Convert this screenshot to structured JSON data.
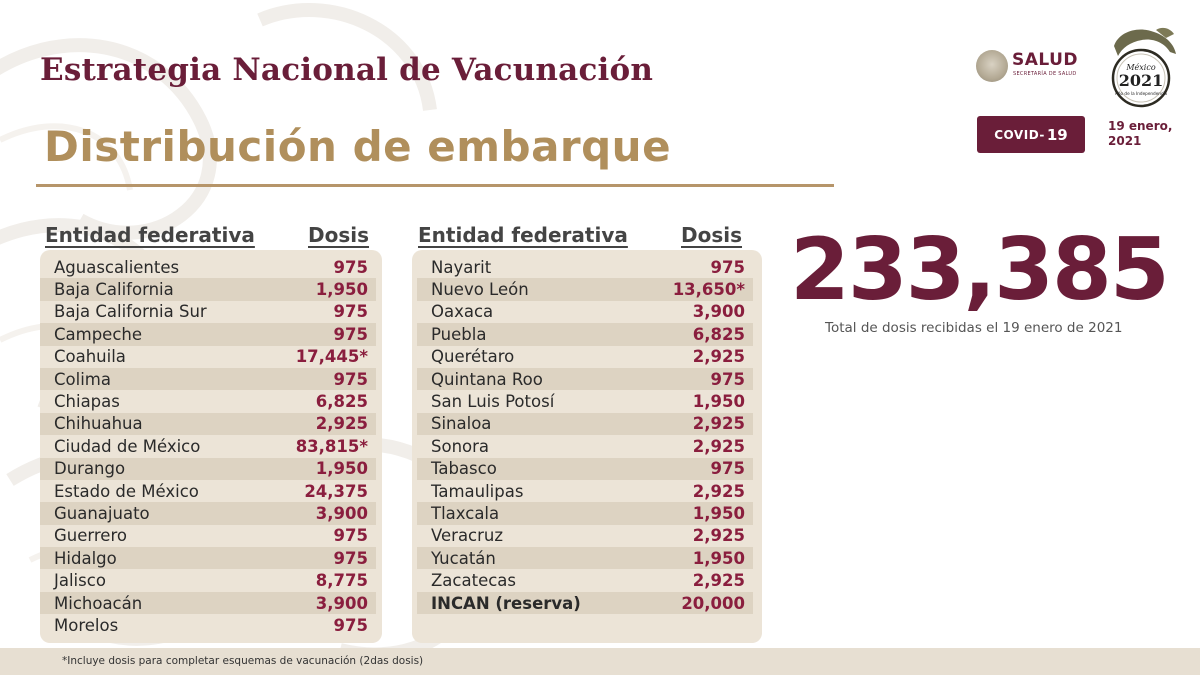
{
  "header": {
    "title": "Estrategia Nacional de Vacunación",
    "subtitle": "Distribución de embarque"
  },
  "logos": {
    "salud_text": "SALUD",
    "salud_sub": "SECRETARÍA DE SALUD",
    "seal_line1": "México",
    "seal_line2": "2021",
    "seal_line3": "Año de la Independencia"
  },
  "badge": {
    "covid_prefix": "COVID-",
    "covid_num": "19"
  },
  "date_label": {
    "line1": "19 enero,",
    "line2": "2021"
  },
  "table_left": {
    "col_entity": "Entidad federativa",
    "col_doses": "Dosis",
    "rows": [
      {
        "name": "Aguascalientes",
        "value": "975"
      },
      {
        "name": "Baja California",
        "value": "1,950"
      },
      {
        "name": "Baja California Sur",
        "value": "975"
      },
      {
        "name": "Campeche",
        "value": "975"
      },
      {
        "name": "Coahuila",
        "value": "17,445*"
      },
      {
        "name": "Colima",
        "value": "975"
      },
      {
        "name": "Chiapas",
        "value": "6,825"
      },
      {
        "name": "Chihuahua",
        "value": "2,925"
      },
      {
        "name": "Ciudad de México",
        "value": "83,815*"
      },
      {
        "name": "Durango",
        "value": "1,950"
      },
      {
        "name": "Estado de México",
        "value": "24,375"
      },
      {
        "name": "Guanajuato",
        "value": "3,900"
      },
      {
        "name": "Guerrero",
        "value": "975"
      },
      {
        "name": "Hidalgo",
        "value": "975"
      },
      {
        "name": "Jalisco",
        "value": "8,775"
      },
      {
        "name": "Michoacán",
        "value": "3,900"
      },
      {
        "name": "Morelos",
        "value": "975"
      }
    ]
  },
  "table_right": {
    "col_entity": "Entidad federativa",
    "col_doses": "Dosis",
    "rows": [
      {
        "name": "Nayarit",
        "value": "975"
      },
      {
        "name": "Nuevo León",
        "value": "13,650*"
      },
      {
        "name": "Oaxaca",
        "value": "3,900"
      },
      {
        "name": "Puebla",
        "value": "6,825"
      },
      {
        "name": "Querétaro",
        "value": "2,925"
      },
      {
        "name": "Quintana Roo",
        "value": "975"
      },
      {
        "name": "San Luis Potosí",
        "value": "1,950"
      },
      {
        "name": "Sinaloa",
        "value": "2,925"
      },
      {
        "name": "Sonora",
        "value": "2,925"
      },
      {
        "name": "Tabasco",
        "value": "975"
      },
      {
        "name": "Tamaulipas",
        "value": "2,925"
      },
      {
        "name": "Tlaxcala",
        "value": "1,950"
      },
      {
        "name": "Veracruz",
        "value": "2,925"
      },
      {
        "name": "Yucatán",
        "value": "1,950"
      },
      {
        "name": "Zacatecas",
        "value": "2,925"
      },
      {
        "name": "INCAN (reserva)",
        "value": "20,000",
        "bold": true
      }
    ]
  },
  "total": {
    "value": "233,385",
    "caption": "Total de dosis recibidas el 19 enero de 2021"
  },
  "footnote": "*Incluye dosis para completar esquemas de vacunación (2das dosis)",
  "colors": {
    "brand_maroon": "#6a1e39",
    "gold": "#b08f5c",
    "value_red": "#8a1e3e",
    "panel_bg": "#ece4d7"
  }
}
